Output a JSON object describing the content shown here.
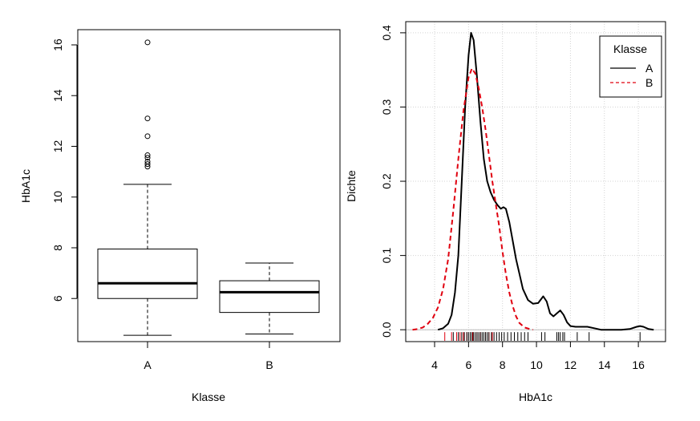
{
  "chart_data": [
    {
      "type": "box",
      "title": "",
      "xlabel": "Klasse",
      "ylabel": "HbA1c",
      "categories": [
        "A",
        "B"
      ],
      "ylim": [
        4.3,
        16.6
      ],
      "yticks": [
        6,
        8,
        10,
        12,
        14,
        16
      ],
      "grid": false,
      "boxes": [
        {
          "category": "A",
          "min": 4.55,
          "q1": 6.0,
          "median": 6.6,
          "q3": 7.95,
          "max": 10.5,
          "outliers": [
            11.2,
            11.3,
            11.4,
            11.55,
            11.65,
            12.4,
            13.1,
            16.1
          ]
        },
        {
          "category": "B",
          "min": 4.6,
          "q1": 5.45,
          "median": 6.25,
          "q3": 6.7,
          "max": 7.4,
          "outliers": []
        }
      ]
    },
    {
      "type": "line",
      "title": "",
      "xlabel": "HbA1c",
      "ylabel": "Dichte",
      "xlim": [
        2.3,
        17.6
      ],
      "ylim": [
        -0.016,
        0.415
      ],
      "xticks": [
        4,
        6,
        8,
        10,
        12,
        14,
        16
      ],
      "yticks": [
        "0.0",
        "0.1",
        "0.2",
        "0.3",
        "0.4"
      ],
      "grid": true,
      "legend": {
        "title": "Klasse",
        "position": "top-right"
      },
      "series": [
        {
          "name": "A",
          "color": "#000000",
          "style": "solid",
          "x": [
            4.2,
            4.5,
            4.8,
            5.0,
            5.2,
            5.4,
            5.6,
            5.8,
            6.0,
            6.15,
            6.3,
            6.5,
            6.7,
            6.9,
            7.1,
            7.3,
            7.5,
            7.7,
            7.9,
            8.05,
            8.2,
            8.4,
            8.6,
            8.8,
            9.0,
            9.2,
            9.5,
            9.8,
            10.1,
            10.4,
            10.6,
            10.8,
            11.0,
            11.2,
            11.4,
            11.6,
            11.8,
            12.0,
            12.3,
            12.6,
            13.0,
            13.4,
            13.8,
            14.2,
            14.6,
            15.0,
            15.5,
            15.9,
            16.1,
            16.3,
            16.6,
            16.9
          ],
          "y": [
            0.0,
            0.002,
            0.008,
            0.02,
            0.05,
            0.1,
            0.2,
            0.3,
            0.37,
            0.4,
            0.39,
            0.34,
            0.28,
            0.23,
            0.2,
            0.185,
            0.175,
            0.168,
            0.163,
            0.165,
            0.163,
            0.145,
            0.12,
            0.095,
            0.075,
            0.055,
            0.04,
            0.035,
            0.036,
            0.045,
            0.038,
            0.022,
            0.018,
            0.022,
            0.026,
            0.02,
            0.01,
            0.005,
            0.004,
            0.004,
            0.004,
            0.002,
            0.0,
            0.0,
            0.0,
            0.0,
            0.001,
            0.004,
            0.005,
            0.004,
            0.001,
            0.0
          ]
        },
        {
          "name": "B",
          "color": "#e0000f",
          "style": "dashed",
          "x": [
            2.7,
            3.0,
            3.3,
            3.6,
            3.9,
            4.2,
            4.5,
            4.8,
            5.1,
            5.4,
            5.7,
            6.0,
            6.2,
            6.4,
            6.6,
            6.8,
            7.0,
            7.2,
            7.4,
            7.6,
            7.8,
            8.0,
            8.2,
            8.4,
            8.6,
            8.8,
            9.0,
            9.3,
            9.6,
            9.8
          ],
          "y": [
            0.0,
            0.001,
            0.003,
            0.008,
            0.016,
            0.03,
            0.055,
            0.095,
            0.16,
            0.23,
            0.295,
            0.34,
            0.352,
            0.345,
            0.325,
            0.3,
            0.27,
            0.235,
            0.2,
            0.17,
            0.14,
            0.105,
            0.075,
            0.05,
            0.032,
            0.018,
            0.009,
            0.003,
            0.001,
            0.0
          ]
        }
      ],
      "rug": {
        "A": [
          5.1,
          5.4,
          5.6,
          5.75,
          5.9,
          6.0,
          6.1,
          6.2,
          6.3,
          6.4,
          6.5,
          6.6,
          6.7,
          6.8,
          6.9,
          7.0,
          7.1,
          7.2,
          7.35,
          7.5,
          7.65,
          7.8,
          7.95,
          8.1,
          8.3,
          8.5,
          8.7,
          8.9,
          9.1,
          9.3,
          9.5,
          10.3,
          10.5,
          11.2,
          11.3,
          11.4,
          11.55,
          11.65,
          12.4,
          13.1,
          16.1
        ],
        "B": [
          4.6,
          5.0,
          5.3,
          5.5,
          5.7,
          5.9,
          6.1,
          6.25,
          6.5,
          6.7,
          7.0,
          7.2,
          7.4
        ]
      }
    }
  ]
}
